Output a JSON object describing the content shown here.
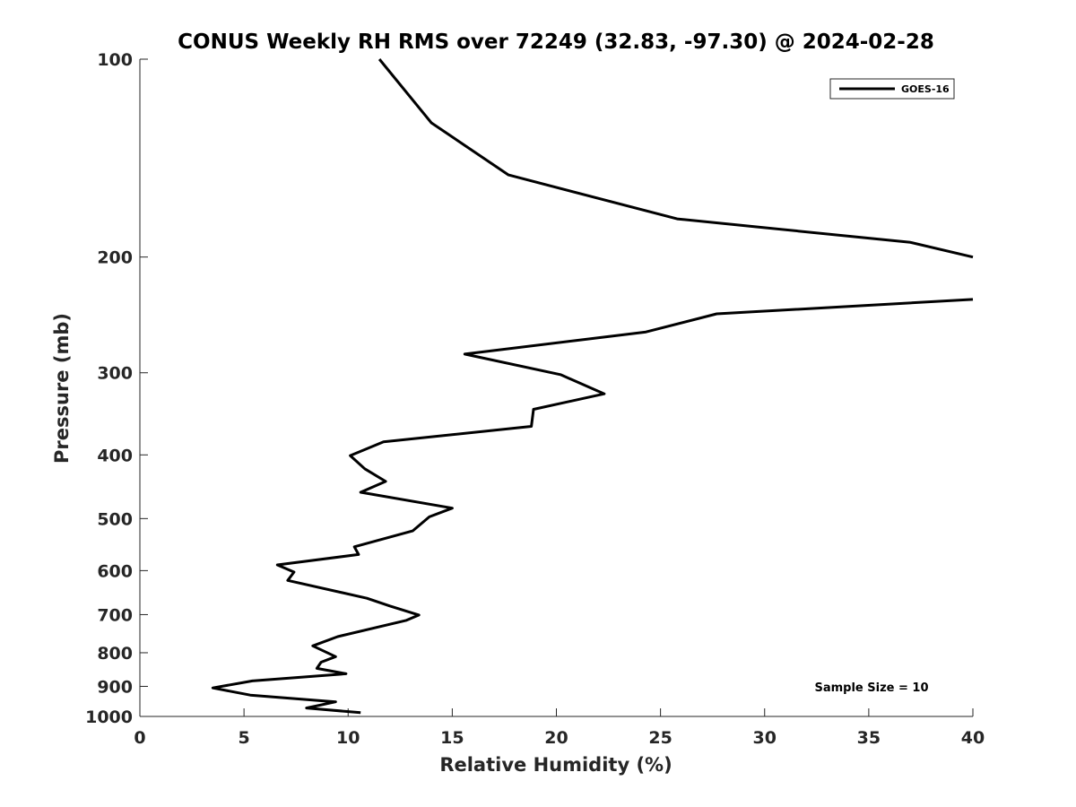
{
  "chart_data": {
    "type": "line",
    "title": "CONUS Weekly RH RMS over 72249 (32.83, -97.30) @ 2024-02-28",
    "xlabel": "Relative Humidity (%)",
    "ylabel": "Pressure (mb)",
    "xlim": [
      0,
      40
    ],
    "ylim": [
      100,
      1000
    ],
    "y_scale": "log",
    "y_reversed": true,
    "x_ticks": [
      0,
      5,
      10,
      15,
      20,
      25,
      30,
      35,
      40
    ],
    "y_ticks": [
      100,
      200,
      300,
      400,
      500,
      600,
      700,
      800,
      900,
      1000
    ],
    "grid": false,
    "legend_position": "top-right",
    "annotation": "Sample Size = 10",
    "series": [
      {
        "name": "GOES-16",
        "color": "#000000",
        "segments": [
          [
            [
              11.5,
              100
            ],
            [
              14,
              125
            ],
            [
              17.7,
              150
            ],
            [
              25.8,
              175
            ],
            [
              37,
              190
            ],
            [
              40,
              200
            ]
          ],
          [
            [
              40,
              232
            ],
            [
              27.7,
              244
            ],
            [
              24.3,
              260
            ],
            [
              15.6,
              281
            ],
            [
              20.2,
              302
            ],
            [
              22.3,
              323
            ],
            [
              18.9,
              341
            ],
            [
              18.8,
              362
            ],
            [
              11.7,
              382
            ],
            [
              10.1,
              401
            ],
            [
              10.8,
              420
            ],
            [
              11.8,
              439
            ],
            [
              10.6,
              456
            ],
            [
              15.0,
              482
            ],
            [
              13.9,
              497
            ],
            [
              13.1,
              522
            ],
            [
              10.3,
              552
            ],
            [
              10.5,
              567
            ],
            [
              6.6,
              588
            ],
            [
              7.4,
              603
            ],
            [
              7.1,
              621
            ],
            [
              10.9,
              661
            ],
            [
              12.0,
              679
            ],
            [
              13.4,
              701
            ],
            [
              12.8,
              714
            ],
            [
              9.5,
              756
            ],
            [
              8.3,
              781
            ],
            [
              9.4,
              811
            ],
            [
              8.7,
              827
            ],
            [
              8.5,
              845
            ],
            [
              9.9,
              861
            ],
            [
              5.4,
              883
            ],
            [
              3.5,
              905
            ],
            [
              5.3,
              928
            ],
            [
              9.4,
              950
            ],
            [
              8.0,
              971
            ],
            [
              10.6,
              987
            ]
          ]
        ]
      }
    ]
  }
}
